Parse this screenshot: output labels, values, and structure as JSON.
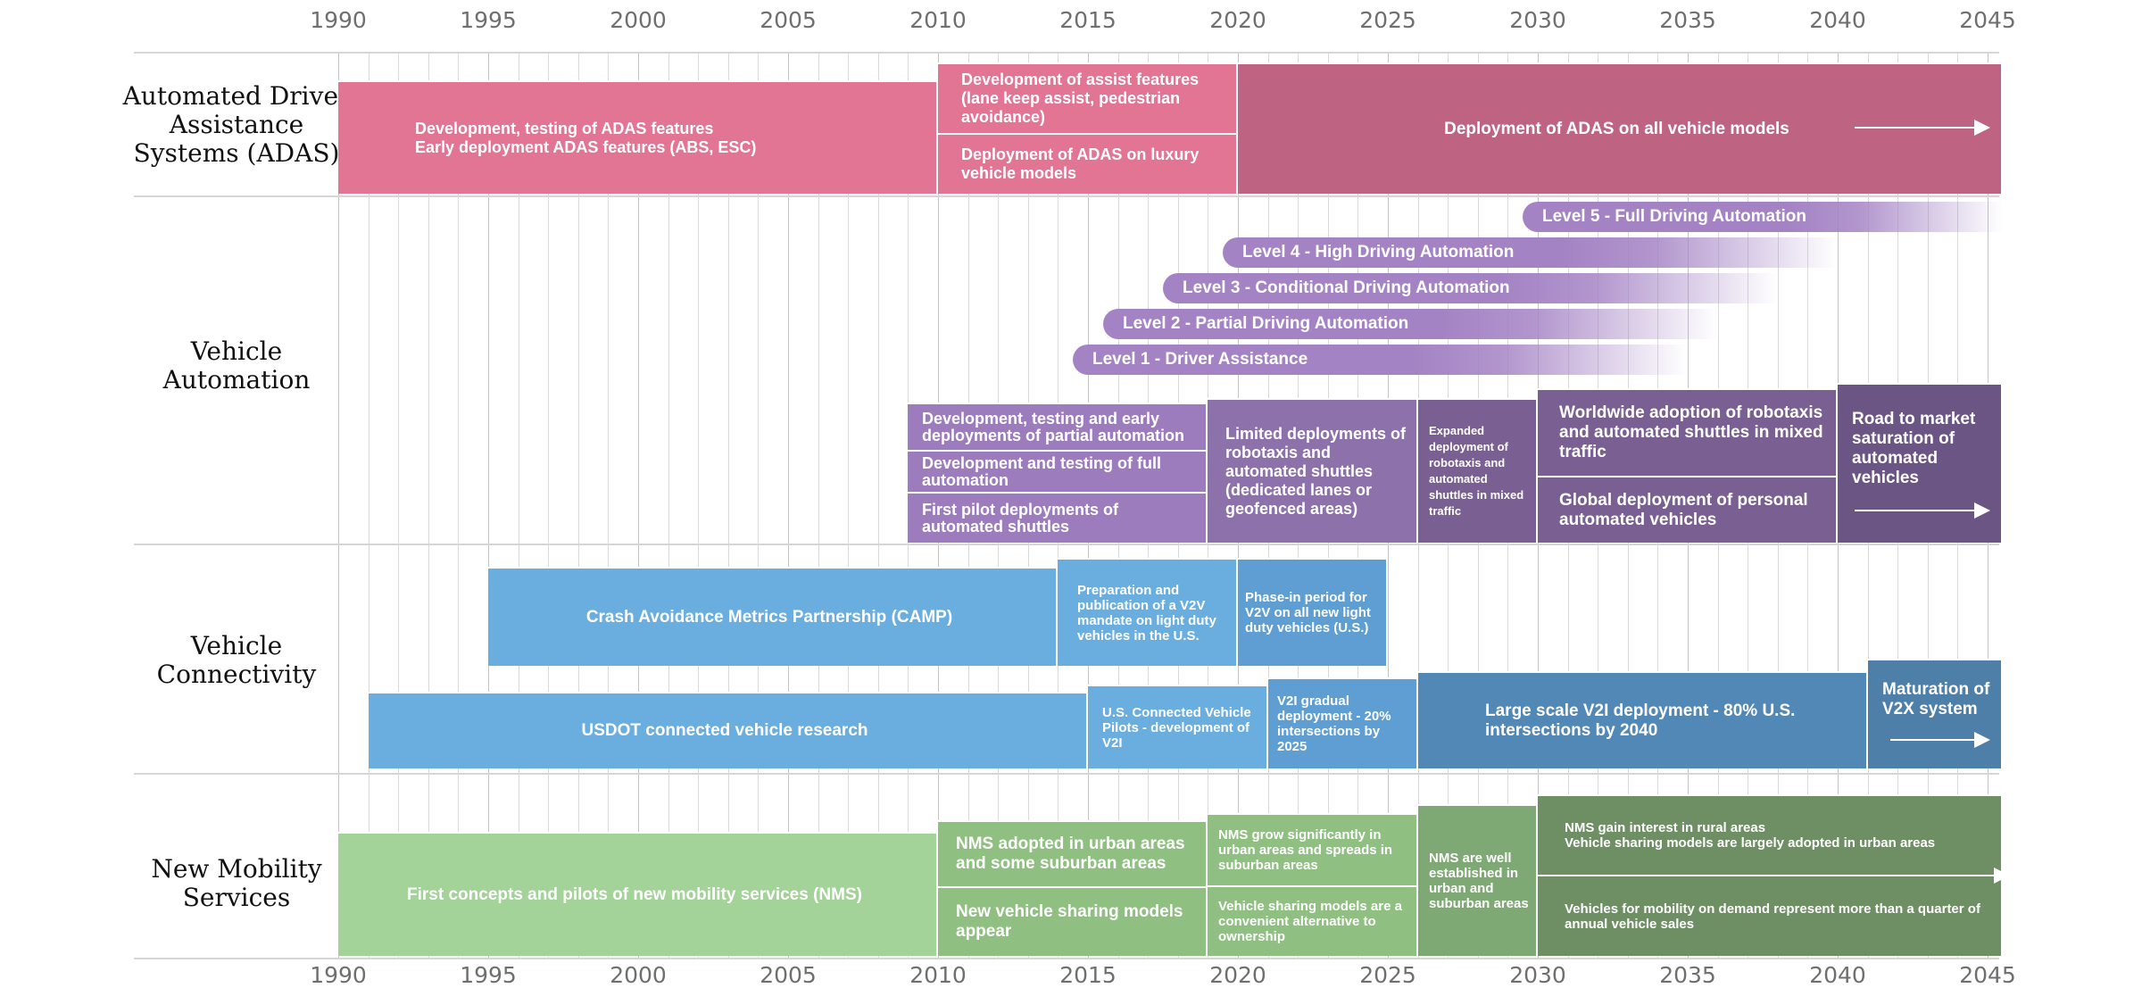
{
  "axis": {
    "years_top": [
      "1990",
      "1995",
      "2000",
      "2005",
      "2010",
      "2015",
      "2020",
      "2025",
      "2030",
      "2035",
      "2040",
      "2045"
    ],
    "years_bottom": [
      "1990",
      "1995",
      "2000",
      "2005",
      "2010",
      "2015",
      "2020",
      "2025",
      "2030",
      "2035",
      "2040",
      "2045"
    ]
  },
  "rows": [
    {
      "id": "adas",
      "label": "Automated Driver\nAssistance\nSystems (ADAS)"
    },
    {
      "id": "automation",
      "label": "Vehicle\nAutomation"
    },
    {
      "id": "connectivity",
      "label": "Vehicle\nConnectivity"
    },
    {
      "id": "mobility",
      "label": "New Mobility\nServices"
    }
  ],
  "colors": {
    "adas_light": "#e17593",
    "adas_dark": "#bf6383",
    "auto_light": "#9c7cbd",
    "auto_mid": "#8d71ab",
    "auto_dark": "#7a5f93",
    "auto_darkest": "#6b5584",
    "conn_light": "#6aaee0",
    "conn_mid": "#5e9ed2",
    "conn_dark": "#5188b5",
    "conn_darkest": "#4d7fa8",
    "nms_light": "#a3d398",
    "nms_mid": "#90bf82",
    "nms_dark": "#7fa974",
    "nms_darkest": "#6e8f63"
  },
  "boxes": [
    {
      "name": "adas-early-development",
      "row": "adas",
      "text": "Development, testing of ADAS features\nEarly deployment ADAS features (ABS, ESC)",
      "color": "adas_light",
      "x0": 1990,
      "x1": 2010
    },
    {
      "name": "adas-assist-features",
      "row": "adas",
      "text": "Development of assist features\n(lane keep assist, pedestrian\navoidance)",
      "color": "adas_light",
      "x0": 2010,
      "x1": 2020
    },
    {
      "name": "adas-luxury-deployment",
      "row": "adas",
      "text": "Deployment of ADAS on luxury\nvehicle models",
      "color": "adas_light",
      "x0": 2010,
      "x1": 2020
    },
    {
      "name": "adas-all-models",
      "row": "adas",
      "text": "Deployment of ADAS on all vehicle models",
      "color": "adas_dark",
      "x0": 2020,
      "x1": 2045.5
    },
    {
      "name": "auto-partial-automation",
      "row": "automation",
      "text": "Development, testing and early\ndeployments of partial automation",
      "color": "auto_light",
      "x0": 2009,
      "x1": 2019
    },
    {
      "name": "auto-full-automation",
      "row": "automation",
      "text": "Development and testing of full\nautomation",
      "color": "auto_light",
      "x0": 2009,
      "x1": 2019
    },
    {
      "name": "auto-pilot-shuttles",
      "row": "automation",
      "text": "First pilot deployments of\nautomated shuttles",
      "color": "auto_light",
      "x0": 2009,
      "x1": 2019
    },
    {
      "name": "auto-limited-robotaxis",
      "row": "automation",
      "text": "Limited deployments of\nrobotaxis and\nautomated shuttles\n(dedicated lanes or\ngeofenced areas)",
      "color": "auto_mid",
      "x0": 2019,
      "x1": 2026
    },
    {
      "name": "auto-expanded-robotaxis",
      "row": "automation",
      "text": "Expanded\ndeployment of\nrobotaxis and\nautomated\nshuttles in mixed\ntraffic",
      "color": "auto_dark",
      "x0": 2026,
      "x1": 2030
    },
    {
      "name": "auto-worldwide-robotaxis",
      "row": "automation",
      "text": "Worldwide adoption of robotaxis\nand automated shuttles in mixed\ntraffic",
      "color": "auto_dark",
      "x0": 2030,
      "x1": 2040
    },
    {
      "name": "auto-global-personal",
      "row": "automation",
      "text": "Global deployment of personal\nautomated vehicles",
      "color": "auto_dark",
      "x0": 2030,
      "x1": 2040
    },
    {
      "name": "auto-market-saturation",
      "row": "automation",
      "text": "Road to market\nsaturation of\nautomated vehicles",
      "color": "auto_darkest",
      "x0": 2040,
      "x1": 2045.5
    },
    {
      "name": "conn-camp",
      "row": "connectivity",
      "text": "Crash Avoidance Metrics Partnership (CAMP)",
      "color": "conn_light",
      "x0": 1995,
      "x1": 2014
    },
    {
      "name": "conn-v2v-mandate",
      "row": "connectivity",
      "text": "Preparation and\npublication of a V2V\nmandate on light duty\nvehicles in the U.S.",
      "color": "conn_light",
      "x0": 2014,
      "x1": 2020
    },
    {
      "name": "conn-v2v-phase-in",
      "row": "connectivity",
      "text": "Phase-in period for\nV2V on all new light\nduty vehicles (U.S.)",
      "color": "conn_mid",
      "x0": 2020,
      "x1": 2025
    },
    {
      "name": "conn-usdot-research",
      "row": "connectivity",
      "text": "USDOT connected vehicle research",
      "color": "conn_light",
      "x0": 1991,
      "x1": 2015
    },
    {
      "name": "conn-cv-pilots",
      "row": "connectivity",
      "text": "U.S. Connected Vehicle\nPilots - development of\nV2I",
      "color": "conn_light",
      "x0": 2015,
      "x1": 2021
    },
    {
      "name": "conn-v2i-gradual",
      "row": "connectivity",
      "text": "V2I gradual\ndeployment - 20%\nintersections by 2025",
      "color": "conn_mid",
      "x0": 2021,
      "x1": 2026
    },
    {
      "name": "conn-v2i-large-scale",
      "row": "connectivity",
      "text": "Large scale V2I deployment - 80% U.S.\nintersections by 2040",
      "color": "conn_dark",
      "x0": 2026,
      "x1": 2041
    },
    {
      "name": "conn-v2x-maturation",
      "row": "connectivity",
      "text": "Maturation of\nV2X system",
      "color": "conn_darkest",
      "x0": 2041,
      "x1": 2045.5
    },
    {
      "name": "nms-first-concepts",
      "row": "mobility",
      "text": "First concepts and pilots of new mobility services (NMS)",
      "color": "nms_light",
      "x0": 1990,
      "x1": 2010
    },
    {
      "name": "nms-urban-adoption",
      "row": "mobility",
      "text": "NMS adopted in urban areas\nand some suburban areas",
      "color": "nms_mid",
      "x0": 2010,
      "x1": 2019
    },
    {
      "name": "nms-sharing-appear",
      "row": "mobility",
      "text": "New vehicle sharing models\nappear",
      "color": "nms_mid",
      "x0": 2010,
      "x1": 2019
    },
    {
      "name": "nms-grow-suburban",
      "row": "mobility",
      "text": "NMS grow significantly in\nurban areas and spreads in\nsuburban areas",
      "color": "nms_mid",
      "x0": 2019,
      "x1": 2026
    },
    {
      "name": "nms-sharing-alternative",
      "row": "mobility",
      "text": "Vehicle sharing models are a\nconvenient alternative to\nownership",
      "color": "nms_mid",
      "x0": 2019,
      "x1": 2026
    },
    {
      "name": "nms-well-established",
      "row": "mobility",
      "text": "NMS are well\nestablished in\nurban and\nsuburban areas",
      "color": "nms_dark",
      "x0": 2026,
      "x1": 2030
    },
    {
      "name": "nms-rural-interest",
      "row": "mobility",
      "text": "NMS gain interest in rural areas\nVehicle sharing models are largely adopted in urban areas",
      "color": "nms_darkest",
      "x0": 2030,
      "x1": 2045.5
    },
    {
      "name": "nms-mobility-on-demand",
      "row": "mobility",
      "text": "Vehicles for mobility on demand represent more than a quarter of\nannual vehicle sales",
      "color": "nms_darkest",
      "x0": 2030,
      "x1": 2045.5
    }
  ],
  "levels": [
    {
      "name": "level-5-full-automation",
      "text": "Level 5 - Full Driving Automation",
      "x0": 2029.5,
      "x1": 2045.5
    },
    {
      "name": "level-4-high-automation",
      "text": "Level 4 - High Driving Automation",
      "x0": 2019.5,
      "x1": 2040
    },
    {
      "name": "level-3-conditional-automation",
      "text": "Level 3 - Conditional Driving Automation",
      "x0": 2017.5,
      "x1": 2038
    },
    {
      "name": "level-2-partial-automation",
      "text": "Level 2 - Partial Driving Automation",
      "x0": 2015.5,
      "x1": 2036
    },
    {
      "name": "level-1-driver-assistance",
      "text": "Level 1 - Driver Assistance",
      "x0": 2014.5,
      "x1": 2035
    }
  ]
}
